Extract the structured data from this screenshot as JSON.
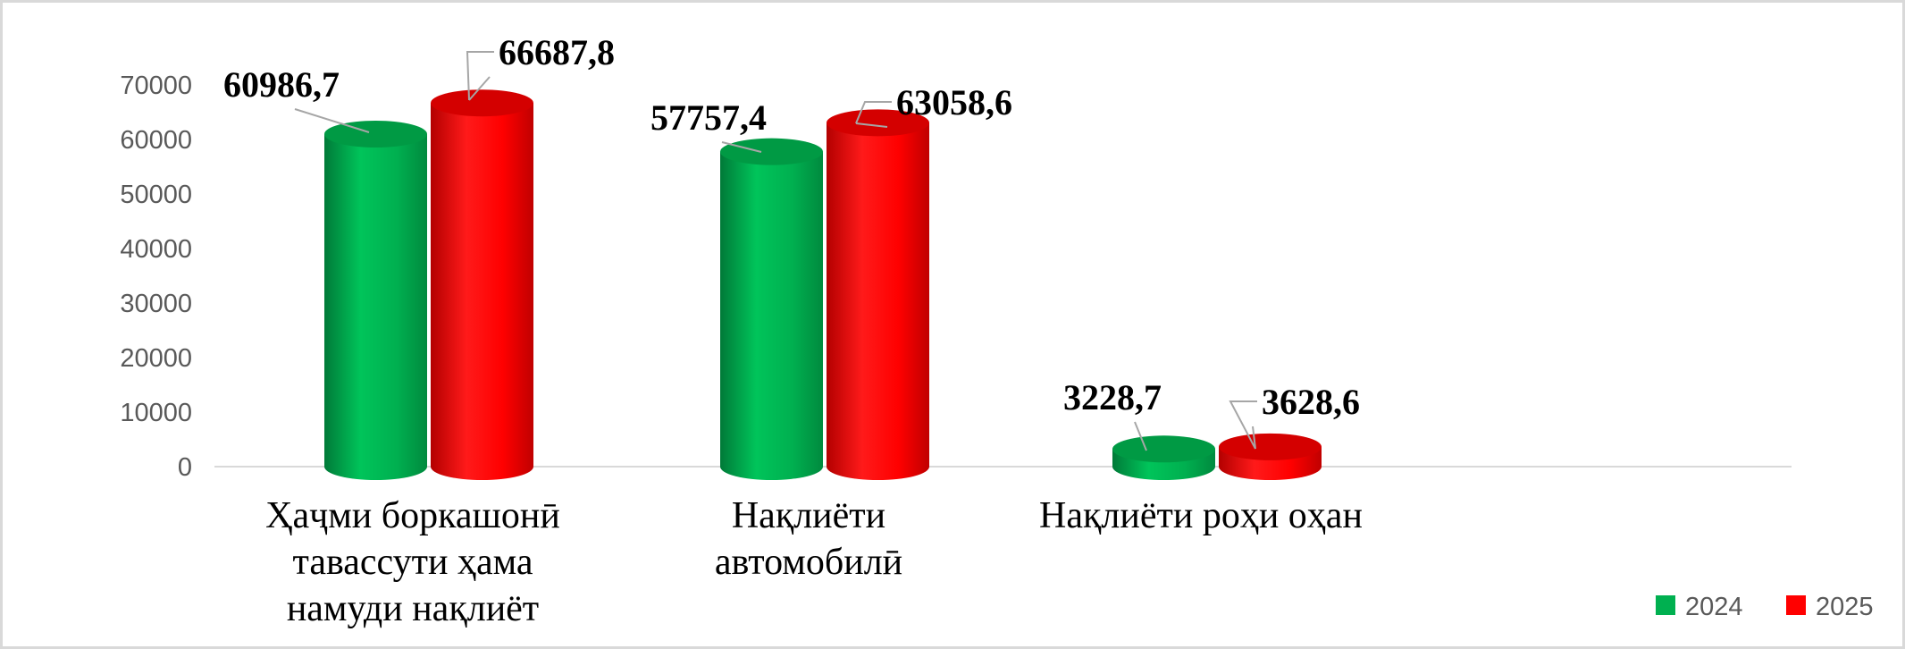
{
  "chart_data": {
    "type": "bar",
    "style": "3d-cylinder",
    "categories": [
      [
        "Ҳаҷми боркашонӣ",
        "тавассути ҳама",
        "намуди нақлиёт"
      ],
      [
        "Нақлиёти",
        "автомобилӣ"
      ],
      [
        "Нақлиёти роҳи оҳан"
      ]
    ],
    "series": [
      {
        "name": "2024",
        "color": "#00b050",
        "values": [
          60986.7,
          57757.4,
          3228.7
        ],
        "labels": [
          "60986,7",
          "57757,4",
          "3228,7"
        ]
      },
      {
        "name": "2025",
        "color": "#ff0000",
        "values": [
          66687.8,
          63058.6,
          3628.6
        ],
        "labels": [
          "66687,8",
          "63058,6",
          "3628,6"
        ]
      }
    ],
    "yticks": [
      "0",
      "10000",
      "20000",
      "30000",
      "40000",
      "50000",
      "60000",
      "70000"
    ],
    "ylim": [
      0,
      70000
    ],
    "grid": false,
    "legend": "bottom-right"
  }
}
